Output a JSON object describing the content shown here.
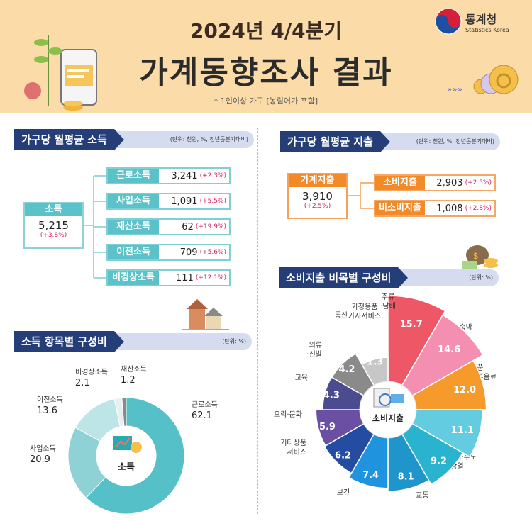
{
  "header": {
    "subtitle": "2024년 4/4분기",
    "title": "가계동향조사 결과",
    "note": "* 1인이상 가구 [농림어가 포함]",
    "logo_kr": "통계청",
    "logo_en": "Statistics Korea"
  },
  "income": {
    "section_title": "가구당 월평균 소득",
    "unit": "(단위: 천원, %, 전년동분기대비)",
    "total": {
      "label": "소득",
      "value": "5,215",
      "change": "(+3.8%)"
    },
    "items": [
      {
        "label": "근로소득",
        "value": "3,241",
        "change": "(+2.3%)"
      },
      {
        "label": "사업소득",
        "value": "1,091",
        "change": "(+5.5%)"
      },
      {
        "label": "재산소득",
        "value": "62",
        "change": "(+19.9%)"
      },
      {
        "label": "이전소득",
        "value": "709",
        "change": "(+5.6%)"
      },
      {
        "label": "비경상소득",
        "value": "111",
        "change": "(+12.1%)"
      }
    ]
  },
  "expenditure": {
    "section_title": "가구당 월평균 지출",
    "unit": "(단위: 천원, %, 전년동분기대비)",
    "total": {
      "label": "가계지출",
      "value": "3,910",
      "change": "(+2.5%)"
    },
    "items": [
      {
        "label": "소비지출",
        "value": "2,903",
        "change": "(+2.5%)"
      },
      {
        "label": "비소비지출",
        "value": "1,008",
        "change": "(+2.8%)"
      }
    ]
  },
  "income_comp": {
    "section_title": "소득 항목별 구성비",
    "unit": "(단위: %)",
    "center_label": "소득"
  },
  "consumption_comp": {
    "section_title": "소비지출 비목별 구성비",
    "unit": "(단위: %)",
    "center_label": "소비지출"
  },
  "chart_data": [
    {
      "type": "pie",
      "title": "소득 항목별 구성비",
      "categories": [
        "근로소득",
        "사업소득",
        "이전소득",
        "비경상소득",
        "재산소득"
      ],
      "values": [
        62.1,
        20.9,
        13.6,
        2.1,
        1.2
      ],
      "colors": [
        "#56c0c8",
        "#8fd2d6",
        "#bde4e6",
        "#e9eeee",
        "#8a8a8a"
      ]
    },
    {
      "type": "pie",
      "title": "소비지출 비목별 구성비",
      "categories": [
        "음식·숙박",
        "식료품 비주류음료",
        "주거·수도 광열",
        "교통",
        "보건",
        "기타상품 서비스",
        "오락·문화",
        "교육",
        "의류 신발",
        "통신",
        "가정용품 가사서비스",
        "주류 담배"
      ],
      "values": [
        15.7,
        14.6,
        12.0,
        11.1,
        9.2,
        8.1,
        7.4,
        6.2,
        5.9,
        4.3,
        4.2,
        1.3
      ],
      "colors": [
        "#ee5866",
        "#f48fb1",
        "#f59a2b",
        "#63cce0",
        "#2ab3cf",
        "#1f95cc",
        "#1f93dd",
        "#244da1",
        "#6b4fa3",
        "#4b4b8f",
        "#8a8a8a",
        "#c7c7c7"
      ]
    }
  ]
}
